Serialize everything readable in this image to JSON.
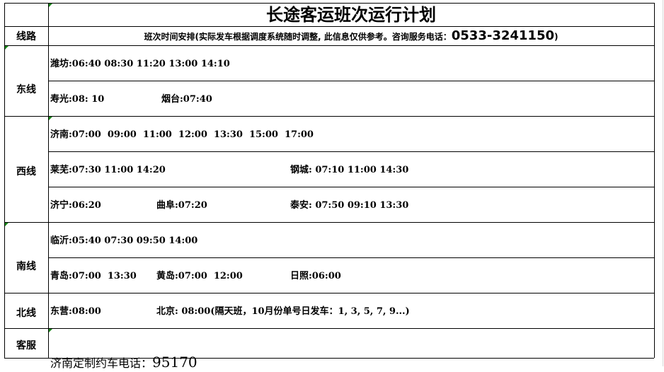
{
  "title": "长途客运班次运行计划",
  "header": {
    "route_label": "线路",
    "note_prefix": "班次时间安排(实际发车根据调度系统随时调整, 此信息仅供参考。咨询服务电话：",
    "phone": "0533-3241150",
    "note_suffix": ")"
  },
  "east": {
    "label": "东线",
    "weifang": "潍坊:06:40 08:30 11:20 13:00 14:10",
    "shouguang": "寿光:08: 10",
    "yantai": "烟台:07:40"
  },
  "west": {
    "label": "西线",
    "jinan": "济南:07:00  09:00  11:00  12:00  13:30  15:00  17:00",
    "laiwu": "莱芜:07:30 11:00 14:20",
    "gangcheng": "钢城: 07:10 11:00 14:30",
    "jining": "济宁:06:20",
    "qufu": "曲阜:07:20",
    "taian": "泰安: 07:50 09:10 13:30"
  },
  "south": {
    "label": "南线",
    "linyi": "临沂:05:40 07:30 09:50 14:00",
    "qingdao": "青岛:07:00  13:30",
    "huangdao": "黄岛:07:00  12:00",
    "rizhao": "日照:06:00"
  },
  "north": {
    "label": "北线",
    "dongying": "东营:08:00",
    "beijing": "北京: 08:00(隔天班，10月份单号日发车：1, 3, 5, 7, 9...)"
  },
  "service": {
    "label": "客服",
    "text": "济南定制约车电话：",
    "phone": "95170"
  }
}
